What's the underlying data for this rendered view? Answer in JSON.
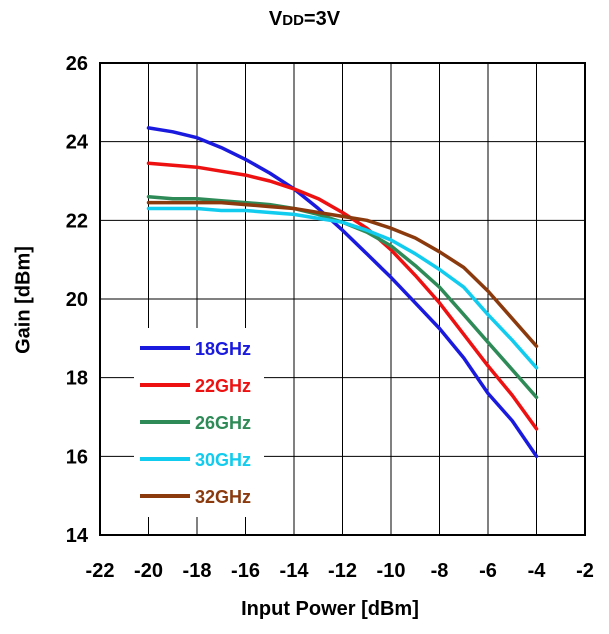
{
  "title_main": "V",
  "title_sub": "DD",
  "title_rest": "=3V",
  "chart_data": {
    "type": "line",
    "title": "VDD=3V",
    "xlabel": "Input Power [dBm]",
    "ylabel": "Gain [dBm]",
    "xlim": [
      -22,
      -2
    ],
    "ylim": [
      14,
      26
    ],
    "xticks": [
      -22,
      -20,
      -18,
      -16,
      -14,
      -12,
      -10,
      -8,
      -6,
      -4,
      -2
    ],
    "yticks": [
      14,
      16,
      18,
      20,
      22,
      24,
      26
    ],
    "grid": true,
    "legend_position": "lower-left inside plot",
    "series": [
      {
        "name": "18GHz",
        "color": "#1a1adf",
        "x": [
          -20,
          -19,
          -18,
          -17,
          -16,
          -15,
          -14,
          -13,
          -12,
          -11,
          -10,
          -9,
          -8,
          -7,
          -6,
          -5,
          -4
        ],
        "y": [
          24.35,
          24.25,
          24.1,
          23.85,
          23.55,
          23.2,
          22.8,
          22.3,
          21.75,
          21.15,
          20.55,
          19.9,
          19.25,
          18.5,
          17.6,
          16.9,
          16.0
        ]
      },
      {
        "name": "22GHz",
        "color": "#ee1111",
        "x": [
          -20,
          -19,
          -18,
          -17,
          -16,
          -15,
          -14,
          -13,
          -12,
          -11,
          -10,
          -9,
          -8,
          -7,
          -6,
          -5,
          -4
        ],
        "y": [
          23.45,
          23.4,
          23.35,
          23.25,
          23.15,
          23.0,
          22.8,
          22.55,
          22.2,
          21.8,
          21.25,
          20.6,
          19.9,
          19.1,
          18.3,
          17.55,
          16.7
        ]
      },
      {
        "name": "26GHz",
        "color": "#2e8b57",
        "x": [
          -20,
          -19,
          -18,
          -17,
          -16,
          -15,
          -14,
          -13,
          -12,
          -11,
          -10,
          -9,
          -8,
          -7,
          -6,
          -5,
          -4
        ],
        "y": [
          22.6,
          22.55,
          22.55,
          22.5,
          22.45,
          22.4,
          22.3,
          22.15,
          21.95,
          21.7,
          21.35,
          20.85,
          20.3,
          19.6,
          18.9,
          18.2,
          17.5
        ]
      },
      {
        "name": "30GHz",
        "color": "#11ccee",
        "x": [
          -20,
          -19,
          -18,
          -17,
          -16,
          -15,
          -14,
          -13,
          -12,
          -11,
          -10,
          -9,
          -8,
          -7,
          -6,
          -5,
          -4
        ],
        "y": [
          22.3,
          22.3,
          22.3,
          22.25,
          22.25,
          22.2,
          22.15,
          22.05,
          21.95,
          21.75,
          21.5,
          21.15,
          20.75,
          20.3,
          19.6,
          18.95,
          18.25
        ]
      },
      {
        "name": "32GHz",
        "color": "#8b3a0e",
        "x": [
          -20,
          -19,
          -18,
          -17,
          -16,
          -15,
          -14,
          -13,
          -12,
          -11,
          -10,
          -9,
          -8,
          -7,
          -6,
          -5,
          -4
        ],
        "y": [
          22.45,
          22.45,
          22.45,
          22.45,
          22.4,
          22.35,
          22.3,
          22.2,
          22.1,
          22.0,
          21.8,
          21.55,
          21.2,
          20.8,
          20.2,
          19.5,
          18.8
        ]
      }
    ]
  }
}
